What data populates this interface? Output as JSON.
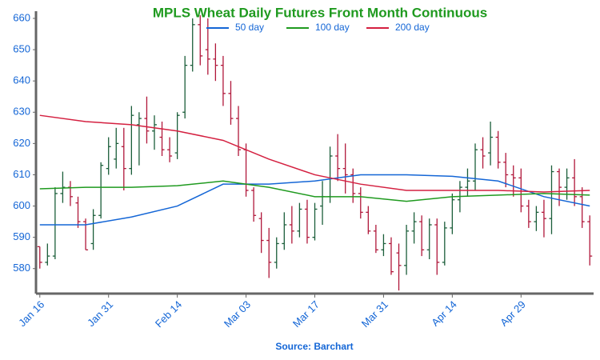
{
  "chart_data": {
    "type": "ohlc",
    "title": "MPLS Wheat Daily Futures Front Month Continuous",
    "source": "Source: Barchart",
    "xlim": [
      -0.5,
      72.5
    ],
    "xticks": [
      {
        "value": 0,
        "label": "Jan 16"
      },
      {
        "value": 9,
        "label": "Jan 31"
      },
      {
        "value": 18,
        "label": "Feb 14"
      },
      {
        "value": 27,
        "label": "Mar 03"
      },
      {
        "value": 36,
        "label": "Mar 17"
      },
      {
        "value": 45,
        "label": "Mar 31"
      },
      {
        "value": 54,
        "label": "Apr 14"
      },
      {
        "value": 63,
        "label": "Apr 29"
      }
    ],
    "ylim": [
      572,
      660
    ],
    "yticks": [
      580,
      590,
      600,
      610,
      620,
      630,
      640,
      650,
      660
    ],
    "up_color": "#1b5e3a",
    "down_color": "#b0173a",
    "open": [
      587,
      582,
      584,
      604,
      606,
      601,
      595,
      588,
      597,
      612,
      615,
      619,
      612,
      626,
      628,
      624,
      622,
      618,
      617,
      630,
      645,
      658,
      650,
      647,
      645,
      636,
      628,
      618,
      605,
      596,
      589,
      582,
      588,
      594,
      592,
      599,
      590,
      600,
      603,
      616,
      612,
      610,
      604,
      598,
      592,
      586,
      588,
      585,
      581,
      592,
      595,
      586,
      594,
      582,
      593,
      602,
      606,
      608,
      618,
      617,
      622,
      614,
      610,
      609,
      600,
      595,
      598,
      596,
      611,
      606,
      609,
      603,
      595
    ],
    "high": [
      587,
      588,
      606,
      611,
      608,
      603,
      596,
      599,
      614,
      622,
      625,
      625,
      632,
      630,
      635,
      629,
      627,
      622,
      630,
      648,
      660,
      661,
      660,
      652,
      648,
      640,
      632,
      620,
      606,
      598,
      593,
      590,
      598,
      600,
      601,
      602,
      601,
      608,
      619,
      623,
      620,
      612,
      606,
      600,
      594,
      591,
      590,
      588,
      594,
      598,
      597,
      596,
      596,
      595,
      604,
      608,
      612,
      620,
      622,
      627,
      624,
      617,
      613,
      612,
      602,
      600,
      602,
      613,
      612,
      612,
      615,
      606,
      597
    ],
    "low": [
      580,
      581,
      583,
      601,
      600,
      593,
      586,
      586,
      596,
      610,
      612,
      605,
      610,
      613,
      620,
      618,
      616,
      614,
      615,
      628,
      643,
      645,
      642,
      640,
      632,
      626,
      616,
      603,
      595,
      585,
      577,
      580,
      586,
      588,
      590,
      588,
      589,
      594,
      601,
      608,
      604,
      601,
      596,
      591,
      585,
      584,
      578,
      573,
      578,
      588,
      584,
      583,
      578,
      581,
      591,
      598,
      603,
      605,
      612,
      613,
      612,
      606,
      603,
      598,
      593,
      592,
      590,
      591,
      600,
      602,
      600,
      593,
      581
    ],
    "close": [
      582,
      584,
      604,
      606,
      603,
      595,
      586,
      597,
      613,
      619,
      620,
      612,
      629,
      628,
      624,
      626,
      618,
      616,
      629,
      645,
      658,
      648,
      647,
      645,
      636,
      628,
      618,
      605,
      597,
      589,
      582,
      588,
      594,
      592,
      599,
      590,
      599,
      603,
      616,
      612,
      610,
      604,
      598,
      592,
      586,
      588,
      579,
      581,
      592,
      595,
      586,
      594,
      582,
      593,
      602,
      606,
      608,
      618,
      616,
      622,
      614,
      610,
      609,
      600,
      595,
      598,
      596,
      611,
      606,
      609,
      603,
      595,
      584
    ],
    "series": [
      {
        "name": "50 day",
        "color": "#1466d6",
        "x": [
          0,
          6,
          12,
          18,
          24,
          30,
          36,
          42,
          48,
          54,
          60,
          66,
          72
        ],
        "values": [
          594,
          594,
          596.5,
          600,
          607,
          607,
          608,
          610,
          610,
          609.5,
          608,
          603,
          600
        ]
      },
      {
        "name": "100 day",
        "color": "#1f9a1f",
        "x": [
          0,
          6,
          12,
          18,
          24,
          30,
          36,
          42,
          48,
          54,
          60,
          66,
          72
        ],
        "values": [
          605.5,
          606,
          606,
          606.5,
          608,
          606,
          603,
          603,
          601.5,
          603,
          603.5,
          604,
          603.5
        ]
      },
      {
        "name": "200 day",
        "color": "#d42040",
        "x": [
          0,
          6,
          12,
          18,
          24,
          30,
          36,
          42,
          48,
          54,
          60,
          66,
          72
        ],
        "values": [
          629,
          627,
          626,
          624,
          621,
          615,
          610,
          607,
          605,
          605,
          605,
          604.5,
          605
        ]
      }
    ]
  }
}
